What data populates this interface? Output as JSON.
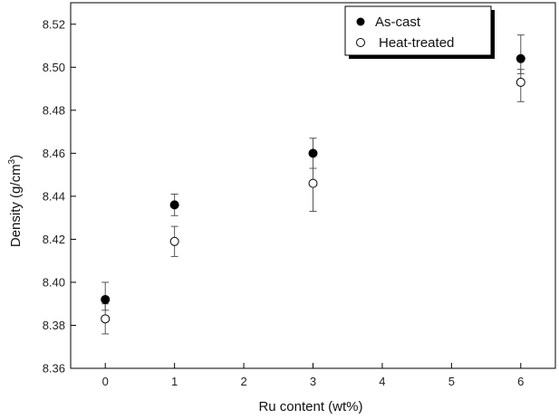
{
  "chart_data": {
    "type": "scatter",
    "xlabel": "Ru content (wt%)",
    "ylabel_main": "Density (g/cm",
    "ylabel_sup": "3",
    "ylabel_close": ")",
    "xlim": [
      -0.5,
      6.5
    ],
    "ylim": [
      8.36,
      8.53
    ],
    "x_ticks": [
      "0",
      "1",
      "2",
      "3",
      "4",
      "5",
      "6"
    ],
    "y_ticks": [
      "8.36",
      "8.38",
      "8.40",
      "8.42",
      "8.44",
      "8.46",
      "8.48",
      "8.50",
      "8.52"
    ],
    "grid": false,
    "legend_position": "top-right",
    "series": [
      {
        "name": "As-cast",
        "marker": "filled-circle",
        "color": "#000000",
        "points": [
          {
            "x": 0,
            "y": 8.392,
            "err_low": 8.387,
            "err_high": 8.4
          },
          {
            "x": 1,
            "y": 8.436,
            "err_low": 8.431,
            "err_high": 8.441
          },
          {
            "x": 3,
            "y": 8.46,
            "err_low": 8.453,
            "err_high": 8.467
          },
          {
            "x": 6,
            "y": 8.504,
            "err_low": 8.497,
            "err_high": 8.515
          }
        ]
      },
      {
        "name": "Heat-treated",
        "marker": "open-circle",
        "color": "#000000",
        "points": [
          {
            "x": 0,
            "y": 8.383,
            "err_low": 8.376,
            "err_high": 8.39
          },
          {
            "x": 1,
            "y": 8.419,
            "err_low": 8.412,
            "err_high": 8.426
          },
          {
            "x": 3,
            "y": 8.446,
            "err_low": 8.433,
            "err_high": 8.453
          },
          {
            "x": 6,
            "y": 8.493,
            "err_low": 8.484,
            "err_high": 8.499
          }
        ]
      }
    ]
  }
}
